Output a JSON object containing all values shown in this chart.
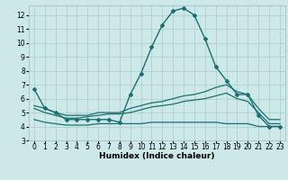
{
  "title": "",
  "xlabel": "Humidex (Indice chaleur)",
  "ylabel": "",
  "bg_color": "#cce8e8",
  "grid_color": "#aacccc",
  "line_color": "#1a7070",
  "xlim": [
    -0.5,
    23.5
  ],
  "ylim": [
    3,
    12.7
  ],
  "yticks": [
    3,
    4,
    5,
    6,
    7,
    8,
    9,
    10,
    11,
    12
  ],
  "xticks": [
    0,
    1,
    2,
    3,
    4,
    5,
    6,
    7,
    8,
    9,
    10,
    11,
    12,
    13,
    14,
    15,
    16,
    17,
    18,
    19,
    20,
    21,
    22,
    23
  ],
  "lines": [
    {
      "x": [
        0,
        1,
        2,
        3,
        4,
        5,
        6,
        7,
        8,
        9,
        10,
        11,
        12,
        13,
        14,
        15,
        16,
        17,
        18,
        19,
        20,
        21,
        22,
        23
      ],
      "y": [
        6.7,
        5.3,
        5.0,
        4.5,
        4.5,
        4.5,
        4.5,
        4.5,
        4.3,
        6.3,
        7.8,
        9.7,
        11.3,
        12.3,
        12.5,
        12.0,
        10.3,
        8.3,
        7.3,
        6.3,
        6.3,
        4.8,
        4.0,
        4.0
      ],
      "marker": "D",
      "markersize": 2.0,
      "linewidth": 1.0
    },
    {
      "x": [
        0,
        1,
        2,
        3,
        4,
        5,
        6,
        7,
        8,
        9,
        10,
        11,
        12,
        13,
        14,
        15,
        16,
        17,
        18,
        19,
        20,
        21,
        22,
        23
      ],
      "y": [
        5.5,
        5.3,
        5.0,
        4.8,
        4.8,
        4.8,
        5.0,
        5.0,
        5.0,
        5.3,
        5.5,
        5.7,
        5.8,
        6.0,
        6.2,
        6.3,
        6.5,
        6.8,
        7.0,
        6.5,
        6.3,
        5.3,
        4.5,
        4.5
      ],
      "marker": null,
      "markersize": 0,
      "linewidth": 0.9
    },
    {
      "x": [
        0,
        1,
        2,
        3,
        4,
        5,
        6,
        7,
        8,
        9,
        10,
        11,
        12,
        13,
        14,
        15,
        16,
        17,
        18,
        19,
        20,
        21,
        22,
        23
      ],
      "y": [
        5.3,
        5.0,
        4.8,
        4.6,
        4.6,
        4.7,
        4.8,
        4.9,
        4.9,
        5.0,
        5.2,
        5.4,
        5.5,
        5.6,
        5.8,
        5.9,
        6.0,
        6.2,
        6.4,
        6.0,
        5.8,
        5.0,
        4.2,
        4.2
      ],
      "marker": null,
      "markersize": 0,
      "linewidth": 0.9
    },
    {
      "x": [
        0,
        1,
        2,
        3,
        4,
        5,
        6,
        7,
        8,
        9,
        10,
        11,
        12,
        13,
        14,
        15,
        16,
        17,
        18,
        19,
        20,
        21,
        22,
        23
      ],
      "y": [
        4.5,
        4.3,
        4.2,
        4.1,
        4.1,
        4.1,
        4.2,
        4.2,
        4.2,
        4.2,
        4.2,
        4.3,
        4.3,
        4.3,
        4.3,
        4.3,
        4.3,
        4.3,
        4.2,
        4.2,
        4.2,
        4.0,
        4.0,
        4.0
      ],
      "marker": null,
      "markersize": 0,
      "linewidth": 0.9
    }
  ],
  "figsize": [
    3.2,
    2.0
  ],
  "dpi": 100,
  "label_fontsize": 6.5,
  "tick_fontsize": 5.5
}
